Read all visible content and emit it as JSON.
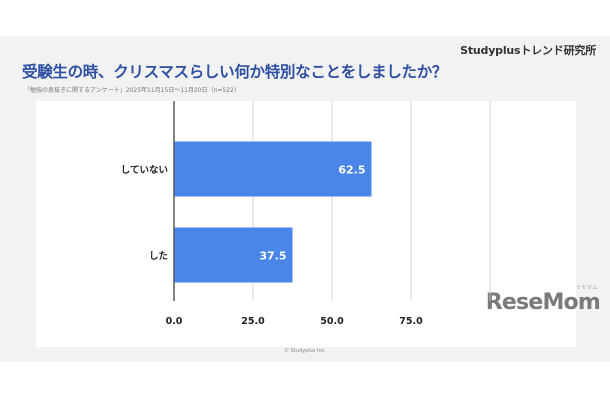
{
  "header": {
    "brand": "Studyplusトレンド研究所",
    "title": "受験生の時、クリスマスらしい何か特別なことをしましたか？",
    "subtitle": "「勉強の息抜きに関するアンケート」2025年11月15日〜11月20日（n=522）"
  },
  "footer": {
    "copyright": "© Studyplus Inc.",
    "logo": "ReseMom",
    "logo_ruby": "リセマム"
  },
  "colors": {
    "bar": "#4a86e8",
    "title": "#2d4fa3",
    "grid": "#cccccc"
  },
  "chart_data": {
    "type": "bar",
    "orientation": "horizontal",
    "title": "受験生の時、クリスマスらしい何か特別なことをしましたか？",
    "categories": [
      "していない",
      "した"
    ],
    "values": [
      62.5,
      37.5
    ],
    "value_labels": [
      "62.5",
      "37.5"
    ],
    "xlim": [
      0,
      100
    ],
    "xticks": [
      0,
      25,
      50,
      75,
      100
    ],
    "xtick_labels": [
      "0.0",
      "25.0",
      "50.0",
      "75.0",
      ""
    ],
    "grid": true,
    "legend": "none"
  }
}
